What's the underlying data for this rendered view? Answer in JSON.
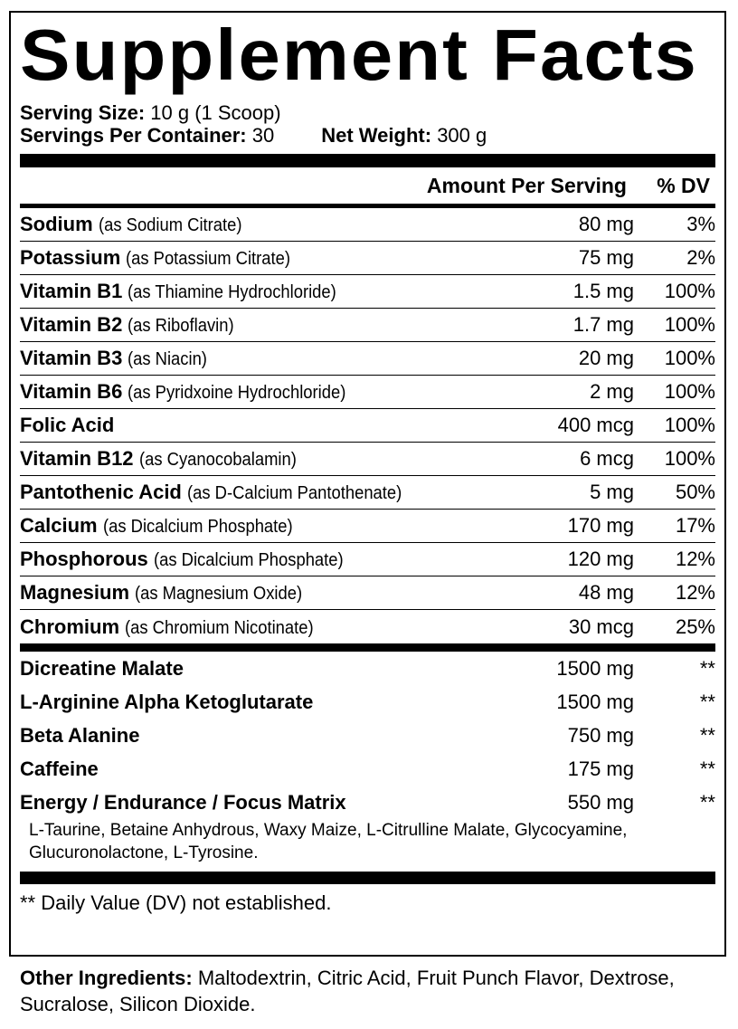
{
  "title": "Supplement Facts",
  "serving_size_label": "Serving Size:",
  "serving_size": "10 g (1 Scoop)",
  "servings_label": "Servings Per Container:",
  "servings": "30",
  "net_weight_label": "Net Weight:",
  "net_weight": "300 g",
  "header": {
    "amount": "Amount Per Serving",
    "dv": "% DV"
  },
  "vitamins": [
    {
      "name": "Sodium",
      "source": "(as Sodium Citrate)",
      "amount": "80 mg",
      "dv": "3%"
    },
    {
      "name": "Potassium",
      "source": "(as Potassium Citrate)",
      "amount": "75 mg",
      "dv": "2%"
    },
    {
      "name": "Vitamin B1",
      "source": "(as Thiamine Hydrochloride)",
      "amount": "1.5 mg",
      "dv": "100%"
    },
    {
      "name": "Vitamin B2",
      "source": "(as Riboflavin)",
      "amount": "1.7 mg",
      "dv": "100%"
    },
    {
      "name": "Vitamin B3",
      "source": "(as Niacin)",
      "amount": "20 mg",
      "dv": "100%"
    },
    {
      "name": "Vitamin B6",
      "source": "(as Pyridxoine Hydrochloride)",
      "amount": "2 mg",
      "dv": "100%"
    },
    {
      "name": "Folic Acid",
      "source": "",
      "amount": "400 mcg",
      "dv": "100%"
    },
    {
      "name": "Vitamin B12",
      "source": "(as Cyanocobalamin)",
      "amount": "6 mcg",
      "dv": "100%"
    },
    {
      "name": "Pantothenic Acid",
      "source": "(as D-Calcium Pantothenate)",
      "amount": "5 mg",
      "dv": "50%"
    },
    {
      "name": "Calcium",
      "source": "(as Dicalcium Phosphate)",
      "amount": "170 mg",
      "dv": "17%"
    },
    {
      "name": "Phosphorous",
      "source": "(as Dicalcium Phosphate)",
      "amount": "120 mg",
      "dv": "12%"
    },
    {
      "name": "Magnesium",
      "source": "(as Magnesium Oxide)",
      "amount": "48 mg",
      "dv": "12%"
    },
    {
      "name": "Chromium",
      "source": "(as Chromium Nicotinate)",
      "amount": "30 mcg",
      "dv": "25%"
    }
  ],
  "others": [
    {
      "name": "Dicreatine Malate",
      "amount": "1500 mg",
      "dv": "**"
    },
    {
      "name": "L-Arginine Alpha Ketoglutarate",
      "amount": "1500 mg",
      "dv": "**"
    },
    {
      "name": "Beta Alanine",
      "amount": "750 mg",
      "dv": "**"
    },
    {
      "name": "Caffeine",
      "amount": "175 mg",
      "dv": "**"
    },
    {
      "name": "Energy / Endurance / Focus Matrix",
      "amount": "550 mg",
      "dv": "**"
    }
  ],
  "matrix_ingredients": "L-Taurine, Betaine Anhydrous, Waxy Maize, L-Citrulline Malate, Glycocyamine, Glucuronolactone, L-Tyrosine.",
  "footnote": "** Daily Value (DV) not established.",
  "other_ingredients_label": "Other Ingredients:",
  "other_ingredients": "Maltodextrin, Citric Acid, Fruit Punch Flavor, Dextrose, Sucralose, Silicon Dioxide."
}
